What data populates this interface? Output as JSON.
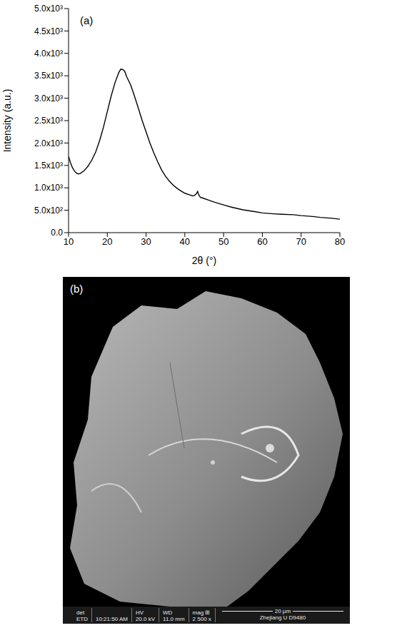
{
  "chart_data": {
    "type": "line",
    "panel_label": "(a)",
    "x_label": "2θ (°)",
    "y_label": "Intensity (a.u.)",
    "color": "#000000",
    "grid": false,
    "xlim": [
      10,
      80
    ],
    "xticks": [
      10,
      20,
      30,
      40,
      50,
      60,
      70,
      80
    ],
    "ylim": [
      0,
      5000
    ],
    "yticks": [
      {
        "value": 0,
        "label": "0.0"
      },
      {
        "value": 500,
        "label": "5.0x10²"
      },
      {
        "value": 1000,
        "label": "1.0x10³"
      },
      {
        "value": 1500,
        "label": "1.5x10³"
      },
      {
        "value": 2000,
        "label": "2.0x10³"
      },
      {
        "value": 2500,
        "label": "2.5x10³"
      },
      {
        "value": 3000,
        "label": "3.0x10³"
      },
      {
        "value": 3500,
        "label": "3.5x10³"
      },
      {
        "value": 4000,
        "label": "4.0x10³"
      },
      {
        "value": 4500,
        "label": "4.5x10³"
      },
      {
        "value": 5000,
        "label": "5.0x10³"
      }
    ],
    "x": [
      10,
      10.5,
      11,
      11.5,
      12,
      12.5,
      13,
      14,
      15,
      16,
      17,
      18,
      19,
      20,
      21,
      22,
      23,
      23.5,
      24,
      24.5,
      25,
      26,
      27,
      28,
      29,
      30,
      31,
      32,
      33,
      34,
      35,
      36,
      37,
      38,
      39,
      40,
      41,
      42,
      42.5,
      43,
      43.3,
      43.6,
      44,
      45,
      46,
      47,
      48,
      50,
      52,
      55,
      58,
      60,
      63,
      65,
      68,
      70,
      73,
      75,
      78,
      80
    ],
    "values": [
      1700,
      1560,
      1450,
      1380,
      1330,
      1310,
      1320,
      1380,
      1480,
      1620,
      1800,
      2050,
      2350,
      2700,
      3050,
      3350,
      3580,
      3650,
      3640,
      3600,
      3480,
      3300,
      3050,
      2780,
      2500,
      2250,
      2000,
      1780,
      1580,
      1400,
      1260,
      1150,
      1060,
      990,
      930,
      880,
      850,
      820,
      830,
      870,
      920,
      840,
      790,
      760,
      730,
      700,
      670,
      620,
      570,
      510,
      470,
      440,
      420,
      410,
      400,
      380,
      360,
      340,
      320,
      300
    ]
  },
  "sem_image": {
    "panel_label": "(b)",
    "info_bar": [
      {
        "head": "det",
        "value": "ETD"
      },
      {
        "value": "10:21:50 AM"
      },
      {
        "head": "HV",
        "value": "20.0 kV"
      },
      {
        "head": "WD",
        "value": "11.0 mm"
      },
      {
        "head": "mag ⊞",
        "value": "2 500 x"
      }
    ],
    "scale_bar": "20 µm",
    "caption": "Zhejiang U D9480"
  }
}
